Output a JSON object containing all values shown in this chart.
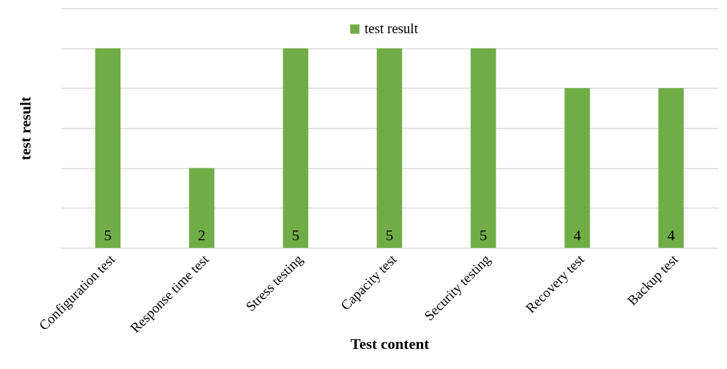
{
  "chart_data": {
    "type": "bar",
    "xlabel": "Test content",
    "ylabel": "test result",
    "categories": [
      "Configuration test",
      "Response time test",
      "Stress testing",
      "Capacity test",
      "Security testing",
      "Recovery test",
      "Backup test"
    ],
    "series": [
      {
        "name": "test result",
        "color": "#70ad47",
        "values": [
          5,
          2,
          5,
          5,
          5,
          4,
          4
        ]
      }
    ],
    "ylim": [
      0,
      6
    ],
    "yticks": [
      {
        "value": 0,
        "label": null
      },
      {
        "value": 1,
        "label": null
      },
      {
        "value": 2,
        "label": null
      },
      {
        "value": 3,
        "label": null
      },
      {
        "value": 4,
        "label": null
      },
      {
        "value": 5,
        "label": null
      },
      {
        "value": 6,
        "label": null
      }
    ],
    "tick_labels": "x",
    "grid": "y",
    "legend": "top",
    "data_labels": true
  }
}
